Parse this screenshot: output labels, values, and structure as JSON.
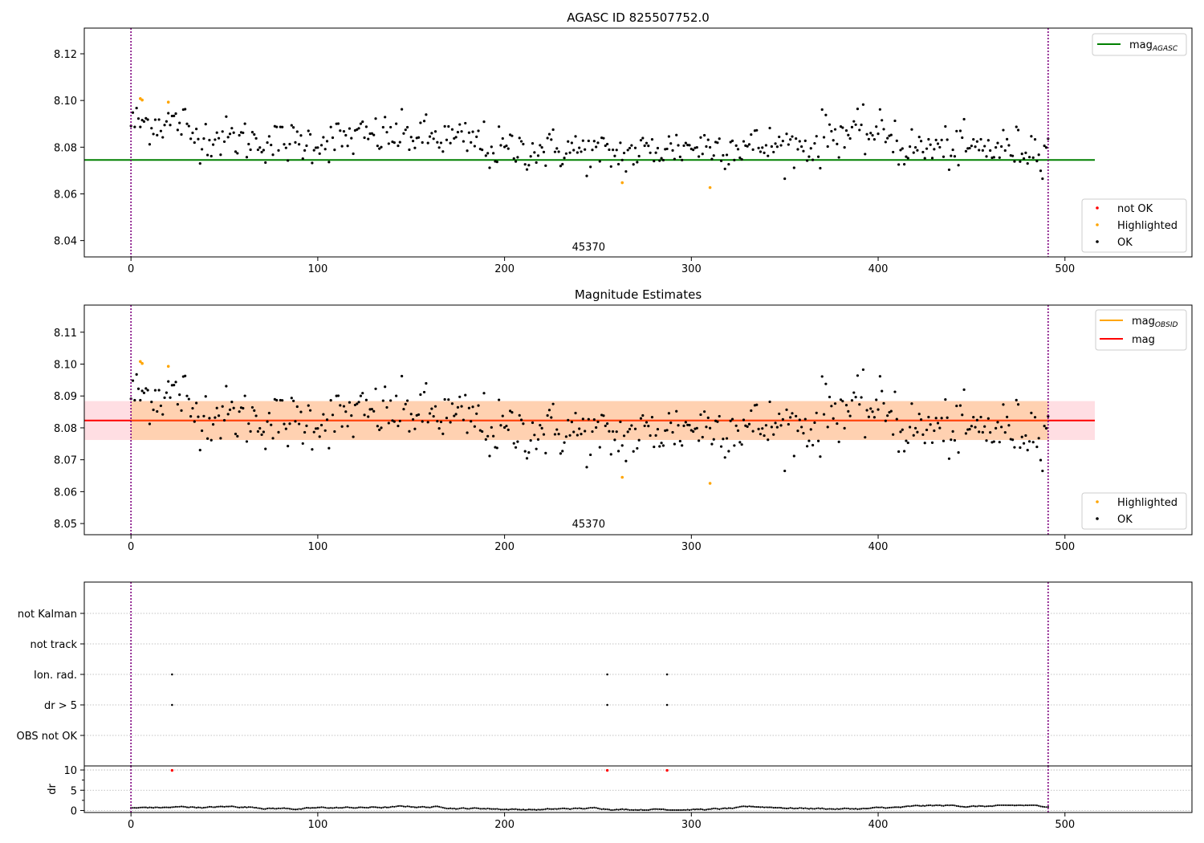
{
  "panels": {
    "agasc": {
      "title": "AGASC ID 825507752.0",
      "xlim": [
        -25,
        568
      ],
      "ylim": [
        8.033,
        8.131
      ],
      "xticks": [
        0,
        100,
        200,
        300,
        400,
        500
      ],
      "yticks": [
        8.04,
        8.06,
        8.08,
        8.1,
        8.12
      ],
      "ytick_decimals": 2,
      "obsid_label": "45370",
      "obsid_label_x": 245,
      "obsid_boundaries": [
        0,
        491
      ],
      "mag_agasc": 8.0745,
      "mag_line_xrange": [
        -25,
        516
      ],
      "legend_lines": [
        {
          "label": "mag",
          "sub": "AGASC",
          "color": "#008000"
        }
      ],
      "legend_points": [
        {
          "label": "not OK",
          "color": "#ff0000"
        },
        {
          "label": "Highlighted",
          "color": "#ffa500"
        },
        {
          "label": "OK",
          "color": "#000000"
        }
      ]
    },
    "mag": {
      "title": "Magnitude Estimates",
      "xlim": [
        -25,
        568
      ],
      "ylim": [
        8.0465,
        8.1185
      ],
      "xticks": [
        0,
        100,
        200,
        300,
        400,
        500
      ],
      "yticks": [
        8.05,
        8.06,
        8.07,
        8.08,
        8.09,
        8.1,
        8.11
      ],
      "ytick_decimals": 2,
      "obsid_label": "45370",
      "obsid_label_x": 245,
      "obsid_boundaries": [
        0,
        491
      ],
      "mag_mean": 8.0823,
      "band": [
        8.0762,
        8.0884
      ],
      "mag_line_xrange": [
        -25,
        516
      ],
      "legend_lines": [
        {
          "label": "mag",
          "sub": "OBSID",
          "color": "#ffa500"
        },
        {
          "label": "mag",
          "sub": "",
          "color": "#ff0000"
        }
      ],
      "legend_points": [
        {
          "label": "Highlighted",
          "color": "#ffa500"
        },
        {
          "label": "OK",
          "color": "#000000"
        }
      ]
    },
    "flags": {
      "xlim": [
        -25,
        568
      ],
      "categories": [
        "not Kalman",
        "not track",
        "Ion. rad.",
        "dr > 5",
        "OBS not OK"
      ],
      "flag_points": {
        "Ion. rad.": [
          22,
          255,
          287
        ],
        "dr > 5": [
          22,
          255,
          287
        ]
      },
      "obsid_boundaries": [
        0,
        491
      ]
    },
    "dr": {
      "xlim": [
        -25,
        568
      ],
      "ylim": [
        -0.5,
        11
      ],
      "xticks": [
        0,
        100,
        200,
        300,
        400,
        500
      ],
      "yticks": [
        0,
        5,
        10
      ],
      "ylabel": "dr",
      "high_points": [
        {
          "x": 22,
          "y": 9.9
        },
        {
          "x": 255,
          "y": 9.9
        },
        {
          "x": 287,
          "y": 9.9
        }
      ],
      "obsid_boundaries": [
        0,
        491
      ]
    }
  },
  "chart_data": [
    {
      "type": "scatter",
      "title": "AGASC ID 825507752.0",
      "xlabel": "",
      "ylabel": "",
      "xlim": [
        -25,
        568
      ],
      "ylim": [
        8.033,
        8.131
      ],
      "n_points": 492,
      "series": [
        {
          "name": "OK",
          "color": "#000000"
        },
        {
          "name": "Highlighted",
          "color": "#ffa500",
          "points": [
            [
              5,
              8.1008
            ],
            [
              6,
              8.1002
            ],
            [
              20,
              8.0993
            ],
            [
              263,
              8.0648
            ],
            [
              310,
              8.0627
            ]
          ]
        },
        {
          "name": "not OK",
          "color": "#ff0000",
          "points": []
        }
      ],
      "reference_lines": [
        {
          "name": "mag_AGASC",
          "y": 8.0745,
          "color": "#008000"
        }
      ],
      "annotation": "45370",
      "legend": "top-right / bottom-right"
    },
    {
      "type": "scatter",
      "title": "Magnitude Estimates",
      "xlabel": "",
      "ylabel": "",
      "xlim": [
        -25,
        568
      ],
      "ylim": [
        8.0465,
        8.1185
      ],
      "series": [
        {
          "name": "OK",
          "color": "#000000"
        },
        {
          "name": "Highlighted",
          "color": "#ffa500",
          "points": [
            [
              5,
              8.1008
            ],
            [
              6,
              8.1002
            ],
            [
              20,
              8.0993
            ],
            [
              263,
              8.0645
            ],
            [
              310,
              8.0626
            ]
          ]
        }
      ],
      "reference_lines": [
        {
          "name": "mag",
          "y": 8.0823,
          "color": "#ff0000"
        },
        {
          "name": "mag_OBSID",
          "y": 8.0823,
          "color": "#ffa500"
        }
      ],
      "band": [
        8.0762,
        8.0884
      ],
      "annotation": "45370",
      "legend": "top-right / bottom-right"
    },
    {
      "type": "scatter",
      "title": "",
      "categories": [
        "not Kalman",
        "not track",
        "Ion. rad.",
        "dr > 5",
        "OBS not OK"
      ],
      "flagged_indices": {
        "Ion. rad.": [
          22,
          255,
          287
        ],
        "dr > 5": [
          22,
          255,
          287
        ]
      }
    },
    {
      "type": "line",
      "title": "",
      "ylabel": "dr",
      "ylim": [
        -0.5,
        11
      ],
      "yticks": [
        0,
        5,
        10
      ],
      "baseline_range": [
        0.2,
        1.2
      ],
      "high_points": [
        [
          22,
          9.9
        ],
        [
          255,
          9.9
        ],
        [
          287,
          9.9
        ]
      ]
    }
  ]
}
